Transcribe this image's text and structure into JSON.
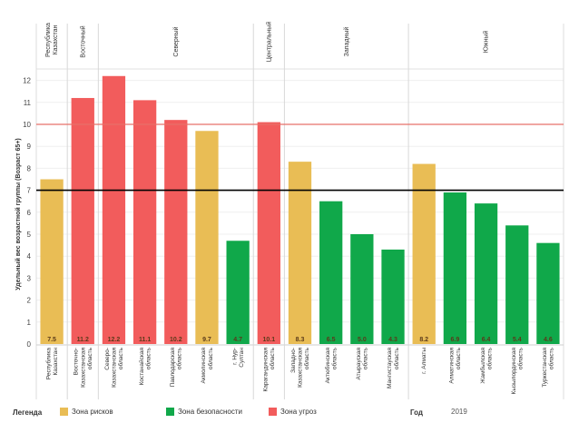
{
  "chart_data": {
    "type": "bar",
    "title": "",
    "ylabel": "Удельный вес возрастной группы (Возраст 65+)",
    "xlabel": "",
    "ylim": [
      0,
      13
    ],
    "yticks": [
      0,
      1,
      2,
      3,
      4,
      5,
      6,
      7,
      8,
      9,
      10,
      11,
      12
    ],
    "grid": true,
    "reference_lines": [
      {
        "value": 7,
        "color": "#000000",
        "label": "threshold-risk"
      },
      {
        "value": 10,
        "color": "#e8706a",
        "label": "threshold-threat"
      }
    ],
    "regions": [
      {
        "name": "Республика Казахстан",
        "count": 1
      },
      {
        "name": "Восточный",
        "count": 1
      },
      {
        "name": "Северный",
        "count": 5
      },
      {
        "name": "Центральный",
        "count": 1
      },
      {
        "name": "Западный",
        "count": 4
      },
      {
        "name": "Южный",
        "count": 5
      }
    ],
    "categories": [
      "Республика Казахстан",
      "Восточно-Казахстанская область",
      "Северо-Казахстанская область",
      "Костанайская область",
      "Павлодарская область",
      "Акмолинская область",
      "г. Нур-Султан",
      "Карагандинская область",
      "Западно-Казахстанская область",
      "Актюбинская область",
      "Атырауская область",
      "Мангистауская область",
      "г. Алматы",
      "Алматинская область",
      "Жамбылская область",
      "Кызылординская область",
      "Туркестанская область"
    ],
    "values": [
      7.5,
      11.2,
      12.2,
      11.1,
      10.2,
      9.7,
      4.7,
      10.1,
      8.3,
      6.5,
      5.0,
      4.3,
      8.2,
      6.9,
      6.4,
      5.4,
      4.6
    ],
    "zones": [
      "risk",
      "threat",
      "threat",
      "threat",
      "threat",
      "risk",
      "safe",
      "threat",
      "risk",
      "safe",
      "safe",
      "safe",
      "risk",
      "safe",
      "safe",
      "safe",
      "safe"
    ],
    "value_labels": [
      "7.5",
      "11.2",
      "12.2",
      "11.1",
      "10.2",
      "9.7",
      "4.7",
      "10.1",
      "8.3",
      "6.5",
      "5.0",
      "4.3",
      "8.2",
      "6.9",
      "6.4",
      "5.4",
      "4.6"
    ],
    "legend": {
      "title": "Легенда",
      "placement": "bottom",
      "items": [
        {
          "key": "risk",
          "label": "Зона рисков",
          "color": "#e9bd55"
        },
        {
          "key": "safe",
          "label": "Зона безопасности",
          "color": "#10a84a"
        },
        {
          "key": "threat",
          "label": "Зона угроз",
          "color": "#f25c5c"
        }
      ]
    },
    "year_label": "Год",
    "year_value": "2019"
  }
}
